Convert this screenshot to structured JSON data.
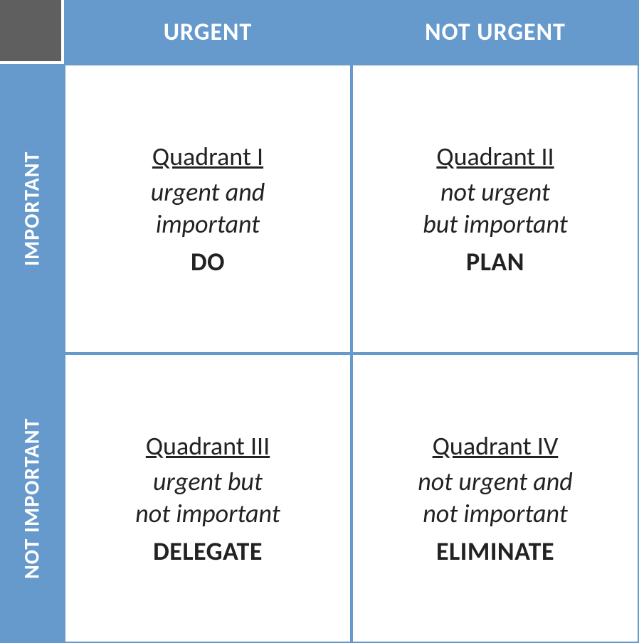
{
  "matrix": {
    "type": "infographic",
    "layout": "2x2-matrix",
    "colors": {
      "header_bg": "#6699cc",
      "header_text": "#ffffff",
      "corner_bg": "#5f5f5f",
      "cell_bg": "#ffffff",
      "cell_border": "#6699cc",
      "cell_text": "#222222"
    },
    "typography": {
      "font_family": "Calibri",
      "header_fontsize_pt": 26,
      "row_header_fontsize_pt": 23,
      "title_fontsize_pt": 27,
      "desc_fontsize_pt": 27,
      "action_fontsize_pt": 27
    },
    "column_headers": [
      "URGENT",
      "NOT URGENT"
    ],
    "row_headers": [
      "IMPORTANT",
      "NOT IMPORTANT"
    ],
    "quadrants": [
      {
        "title": "Quadrant I",
        "description": "urgent and\nimportant",
        "action": "DO"
      },
      {
        "title": "Quadrant II",
        "description": "not urgent\nbut important",
        "action": "PLAN"
      },
      {
        "title": "Quadrant III",
        "description": "urgent but\nnot important",
        "action": "DELEGATE"
      },
      {
        "title": "Quadrant IV",
        "description": "not urgent and\nnot important",
        "action": "ELIMINATE"
      }
    ]
  }
}
